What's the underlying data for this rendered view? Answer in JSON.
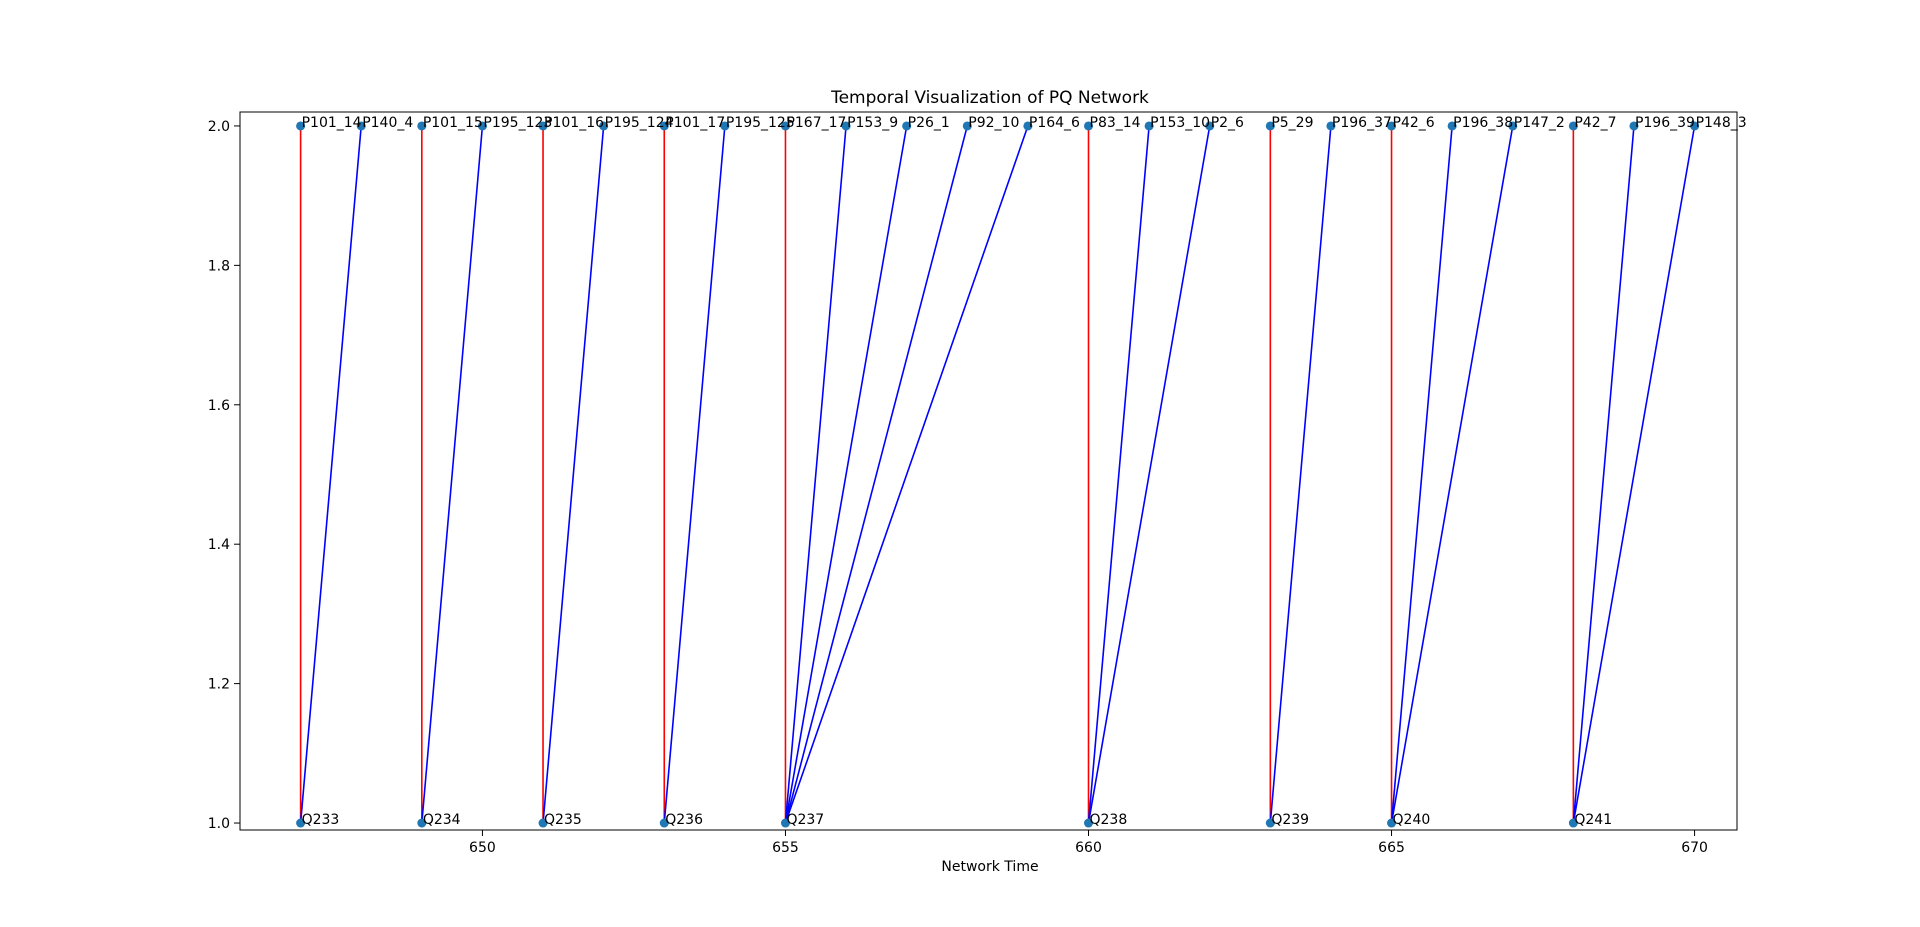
{
  "chart_data": {
    "type": "scatter",
    "title": "Temporal Visualization of PQ Network",
    "xlabel": "Network Time",
    "ylabel": "",
    "xlim": [
      646.0,
      670.7
    ],
    "ylim": [
      0.99,
      2.02
    ],
    "xticks": [
      650,
      655,
      660,
      665,
      670
    ],
    "yticks": [
      1.0,
      1.2,
      1.4,
      1.6,
      1.8,
      2.0
    ],
    "grid": false,
    "legend": "none",
    "colors": {
      "red_edge": "#ff0000",
      "blue_edge": "#0000ff",
      "point": "#1f77b4"
    },
    "nodes": [
      {
        "label": "P101_14",
        "x": 647,
        "y": 2
      },
      {
        "label": "P140_4",
        "x": 648,
        "y": 2
      },
      {
        "label": "P101_15",
        "x": 649,
        "y": 2
      },
      {
        "label": "P195_123",
        "x": 650,
        "y": 2
      },
      {
        "label": "P101_16",
        "x": 651,
        "y": 2
      },
      {
        "label": "P195_124",
        "x": 652,
        "y": 2
      },
      {
        "label": "P101_17",
        "x": 653,
        "y": 2
      },
      {
        "label": "P195_125",
        "x": 654,
        "y": 2
      },
      {
        "label": "P167_17",
        "x": 655,
        "y": 2
      },
      {
        "label": "P153_9",
        "x": 656,
        "y": 2
      },
      {
        "label": "P26_1",
        "x": 657,
        "y": 2
      },
      {
        "label": "P92_10",
        "x": 658,
        "y": 2
      },
      {
        "label": "P164_6",
        "x": 659,
        "y": 2
      },
      {
        "label": "P83_14",
        "x": 660,
        "y": 2
      },
      {
        "label": "P153_10",
        "x": 661,
        "y": 2
      },
      {
        "label": "P2_6",
        "x": 662,
        "y": 2
      },
      {
        "label": "P5_29",
        "x": 663,
        "y": 2
      },
      {
        "label": "P196_37",
        "x": 664,
        "y": 2
      },
      {
        "label": "P42_6",
        "x": 665,
        "y": 2
      },
      {
        "label": "P196_38",
        "x": 666,
        "y": 2
      },
      {
        "label": "P147_2",
        "x": 667,
        "y": 2
      },
      {
        "label": "P42_7",
        "x": 668,
        "y": 2
      },
      {
        "label": "P196_39",
        "x": 669,
        "y": 2
      },
      {
        "label": "P148_3",
        "x": 670,
        "y": 2
      },
      {
        "label": "Q233",
        "x": 647,
        "y": 1
      },
      {
        "label": "Q234",
        "x": 649,
        "y": 1
      },
      {
        "label": "Q235",
        "x": 651,
        "y": 1
      },
      {
        "label": "Q236",
        "x": 653,
        "y": 1
      },
      {
        "label": "Q237",
        "x": 655,
        "y": 1
      },
      {
        "label": "Q238",
        "x": 660,
        "y": 1
      },
      {
        "label": "Q239",
        "x": 663,
        "y": 1
      },
      {
        "label": "Q240",
        "x": 665,
        "y": 1
      },
      {
        "label": "Q241",
        "x": 668,
        "y": 1
      }
    ],
    "edges": [
      {
        "from": "Q233",
        "to": "P101_14",
        "color": "red"
      },
      {
        "from": "Q233",
        "to": "P140_4",
        "color": "blue"
      },
      {
        "from": "Q234",
        "to": "P101_15",
        "color": "red"
      },
      {
        "from": "Q234",
        "to": "P195_123",
        "color": "blue"
      },
      {
        "from": "Q235",
        "to": "P101_16",
        "color": "red"
      },
      {
        "from": "Q235",
        "to": "P195_124",
        "color": "blue"
      },
      {
        "from": "Q236",
        "to": "P101_17",
        "color": "red"
      },
      {
        "from": "Q236",
        "to": "P195_125",
        "color": "blue"
      },
      {
        "from": "Q237",
        "to": "P167_17",
        "color": "red"
      },
      {
        "from": "Q237",
        "to": "P153_9",
        "color": "blue"
      },
      {
        "from": "Q237",
        "to": "P26_1",
        "color": "blue"
      },
      {
        "from": "Q237",
        "to": "P92_10",
        "color": "blue"
      },
      {
        "from": "Q237",
        "to": "P164_6",
        "color": "blue"
      },
      {
        "from": "Q238",
        "to": "P83_14",
        "color": "red"
      },
      {
        "from": "Q238",
        "to": "P153_10",
        "color": "blue"
      },
      {
        "from": "Q238",
        "to": "P2_6",
        "color": "blue"
      },
      {
        "from": "Q239",
        "to": "P5_29",
        "color": "red"
      },
      {
        "from": "Q239",
        "to": "P196_37",
        "color": "blue"
      },
      {
        "from": "Q240",
        "to": "P42_6",
        "color": "red"
      },
      {
        "from": "Q240",
        "to": "P196_38",
        "color": "blue"
      },
      {
        "from": "Q240",
        "to": "P147_2",
        "color": "blue"
      },
      {
        "from": "Q241",
        "to": "P42_7",
        "color": "red"
      },
      {
        "from": "Q241",
        "to": "P196_39",
        "color": "blue"
      },
      {
        "from": "Q241",
        "to": "P148_3",
        "color": "blue"
      }
    ]
  }
}
